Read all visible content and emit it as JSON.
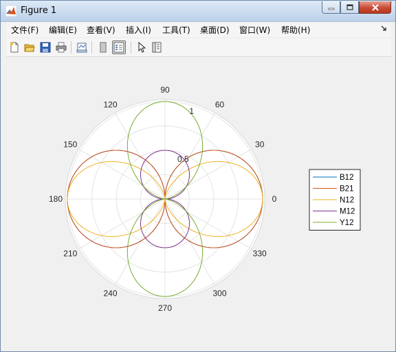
{
  "window": {
    "title": "Figure 1",
    "buttons": [
      "minimize",
      "maximize",
      "close"
    ]
  },
  "menubar": {
    "items": [
      {
        "label": "文件(F)"
      },
      {
        "label": "编辑(E)"
      },
      {
        "label": "查看(V)"
      },
      {
        "label": "插入(I)"
      },
      {
        "label": "工具(T)"
      },
      {
        "label": "桌面(D)"
      },
      {
        "label": "窗口(W)"
      },
      {
        "label": "帮助(H)"
      }
    ]
  },
  "toolbar": {
    "icons": [
      "new-figure-icon",
      "open-file-icon",
      "save-icon",
      "print-icon",
      "link-plot-icon",
      "colorbar-icon",
      "legend-icon",
      "select-pointer-icon",
      "property-inspector-icon"
    ]
  },
  "chart_data": {
    "type": "polar-line",
    "theta_ticks": [
      0,
      30,
      60,
      90,
      120,
      150,
      180,
      210,
      240,
      270,
      300,
      330
    ],
    "theta_tick_labels": [
      "0",
      "30",
      "60",
      "90",
      "120",
      "150",
      "180",
      "210",
      "240",
      "270",
      "300",
      "330"
    ],
    "r_ticks": [
      0.5,
      1
    ],
    "r_tick_labels": [
      "0.5",
      "1"
    ],
    "rlim": [
      0,
      1
    ],
    "theta_units": "degrees",
    "grid": true,
    "legend_position": "right",
    "series": [
      {
        "name": "B12",
        "color": "#0072bd",
        "formula": "r = |cos(theta)|",
        "theta_deg": [
          0,
          15,
          30,
          45,
          60,
          75,
          90
        ],
        "r": [
          1.0,
          0.966,
          0.866,
          0.707,
          0.5,
          0.259,
          0.0
        ]
      },
      {
        "name": "B21",
        "color": "#d95319",
        "formula": "r = |cos(theta)|",
        "theta_deg": [
          0,
          15,
          30,
          45,
          60,
          75,
          90
        ],
        "r": [
          1.0,
          0.966,
          0.866,
          0.707,
          0.5,
          0.259,
          0.0
        ]
      },
      {
        "name": "N12",
        "color": "#edb120",
        "formula": "r = cos^2(theta)",
        "theta_deg": [
          0,
          15,
          30,
          45,
          60,
          75,
          90
        ],
        "r": [
          1.0,
          0.933,
          0.75,
          0.5,
          0.25,
          0.067,
          0.0
        ]
      },
      {
        "name": "M12",
        "color": "#7e2f8e",
        "formula": "r = 0.5|sin(theta)|",
        "theta_deg": [
          0,
          15,
          30,
          45,
          60,
          75,
          90
        ],
        "r": [
          0.0,
          0.129,
          0.25,
          0.354,
          0.433,
          0.483,
          0.5
        ]
      },
      {
        "name": "Y12",
        "color": "#77ac30",
        "formula": "r = sin^2(theta)",
        "theta_deg": [
          0,
          15,
          30,
          45,
          60,
          75,
          90
        ],
        "r": [
          0.0,
          0.067,
          0.25,
          0.5,
          0.75,
          0.933,
          1.0
        ]
      }
    ]
  }
}
